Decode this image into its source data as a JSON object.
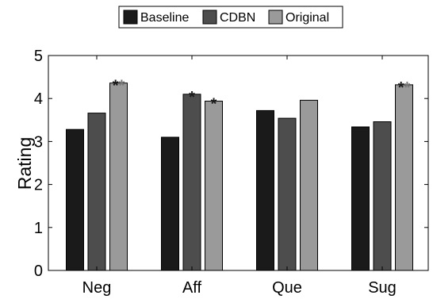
{
  "chart_data": {
    "type": "bar",
    "categories": [
      "Neg",
      "Aff",
      "Que",
      "Sug"
    ],
    "series": [
      {
        "name": "Baseline",
        "color": "#1a1a1a",
        "values": [
          3.28,
          3.1,
          3.72,
          3.34
        ]
      },
      {
        "name": "CDBN",
        "color": "#4d4d4d",
        "values": [
          3.66,
          4.1,
          3.54,
          3.46
        ]
      },
      {
        "name": "Original",
        "color": "#9a9a9a",
        "values": [
          4.36,
          3.94,
          3.96,
          4.32
        ]
      }
    ],
    "ylabel": "Rating",
    "xlabel": "",
    "ylim": [
      0,
      5
    ],
    "yticks": [
      "0",
      "1",
      "2",
      "3",
      "4",
      "5"
    ],
    "grid": false,
    "legend_position": "top-center",
    "annotations": [
      {
        "category": "Neg",
        "series": "Original",
        "text": "**",
        "colors": [
          "#1a1a1a",
          "#777777"
        ]
      },
      {
        "category": "Aff",
        "series": "CDBN",
        "text": "*",
        "colors": [
          "#1a1a1a"
        ]
      },
      {
        "category": "Aff",
        "series": "Original",
        "text": "*",
        "colors": [
          "#1a1a1a"
        ]
      },
      {
        "category": "Sug",
        "series": "Original",
        "text": "**",
        "colors": [
          "#1a1a1a",
          "#777777"
        ]
      }
    ]
  }
}
